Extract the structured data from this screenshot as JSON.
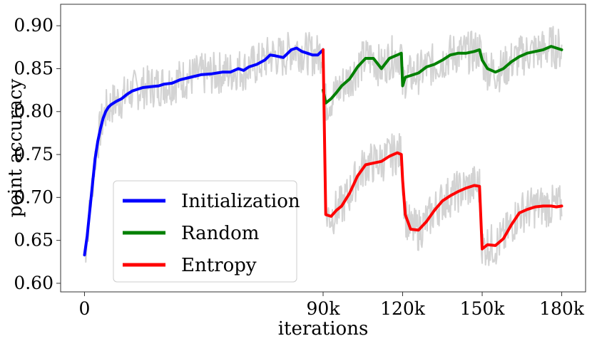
{
  "chart_data": {
    "type": "line",
    "xlabel": "iterations",
    "ylabel": "point accuracy",
    "xlim": [
      -9000,
      189000
    ],
    "ylim": [
      0.59,
      0.925
    ],
    "x_ticks": [
      {
        "value": 0,
        "label": "0"
      },
      {
        "value": 90000,
        "label": "90k"
      },
      {
        "value": 120000,
        "label": "120k"
      },
      {
        "value": 150000,
        "label": "150k"
      },
      {
        "value": 180000,
        "label": "180k"
      }
    ],
    "y_ticks": [
      {
        "value": 0.6,
        "label": "0.60"
      },
      {
        "value": 0.65,
        "label": "0.65"
      },
      {
        "value": 0.7,
        "label": "0.70"
      },
      {
        "value": 0.75,
        "label": "0.75"
      },
      {
        "value": 0.8,
        "label": "0.80"
      },
      {
        "value": 0.85,
        "label": "0.85"
      },
      {
        "value": 0.9,
        "label": "0.90"
      }
    ],
    "grid": false,
    "legend_position": "lower-left",
    "raw_noise_color": "#d3d3d3",
    "series": [
      {
        "name": "Initialization",
        "color": "#0000ff",
        "x": [
          0,
          1000,
          2000,
          3000,
          4000,
          5000,
          6000,
          7000,
          8000,
          9000,
          10000,
          12000,
          14000,
          16000,
          18000,
          20000,
          22000,
          25000,
          28000,
          30000,
          33000,
          36000,
          40000,
          44000,
          48000,
          52000,
          55000,
          58000,
          60000,
          62000,
          65000,
          68000,
          70000,
          72000,
          75000,
          78000,
          80000,
          82000,
          84000,
          86000,
          88000,
          90000
        ],
        "y": [
          0.633,
          0.655,
          0.685,
          0.715,
          0.745,
          0.765,
          0.78,
          0.792,
          0.8,
          0.805,
          0.808,
          0.812,
          0.815,
          0.82,
          0.824,
          0.826,
          0.828,
          0.829,
          0.83,
          0.832,
          0.833,
          0.837,
          0.84,
          0.843,
          0.844,
          0.846,
          0.846,
          0.85,
          0.848,
          0.852,
          0.855,
          0.86,
          0.866,
          0.865,
          0.863,
          0.872,
          0.874,
          0.87,
          0.868,
          0.866,
          0.866,
          0.872
        ]
      },
      {
        "name": "Random",
        "color": "#008000",
        "x": [
          90000,
          91000,
          93000,
          95000,
          97000,
          100000,
          103000,
          106000,
          109000,
          112000,
          115000,
          118000,
          119500,
          120000,
          121000,
          123000,
          126000,
          129000,
          132000,
          135000,
          138000,
          141000,
          144000,
          147000,
          149000,
          150000,
          152000,
          155000,
          158000,
          161000,
          164000,
          167000,
          170000,
          173000,
          176000,
          178000,
          180000
        ],
        "y": [
          0.825,
          0.81,
          0.815,
          0.822,
          0.83,
          0.838,
          0.852,
          0.862,
          0.862,
          0.85,
          0.862,
          0.866,
          0.868,
          0.83,
          0.84,
          0.842,
          0.845,
          0.852,
          0.855,
          0.86,
          0.866,
          0.868,
          0.868,
          0.87,
          0.872,
          0.86,
          0.85,
          0.846,
          0.85,
          0.858,
          0.864,
          0.868,
          0.87,
          0.872,
          0.876,
          0.874,
          0.872
        ]
      },
      {
        "name": "Entropy",
        "color": "#ff0000",
        "x": [
          90000,
          91000,
          93000,
          95000,
          97000,
          100000,
          103000,
          106000,
          109000,
          112000,
          115000,
          118000,
          119500,
          120000,
          121000,
          123000,
          126000,
          129000,
          132000,
          135000,
          138000,
          141000,
          144000,
          147000,
          149000,
          150000,
          152000,
          155000,
          158000,
          161000,
          164000,
          167000,
          170000,
          173000,
          176000,
          178000,
          180000
        ],
        "y": [
          0.872,
          0.68,
          0.678,
          0.685,
          0.69,
          0.705,
          0.725,
          0.738,
          0.74,
          0.742,
          0.748,
          0.752,
          0.75,
          0.72,
          0.68,
          0.663,
          0.662,
          0.672,
          0.685,
          0.696,
          0.702,
          0.707,
          0.711,
          0.714,
          0.713,
          0.64,
          0.645,
          0.644,
          0.652,
          0.668,
          0.682,
          0.686,
          0.689,
          0.69,
          0.69,
          0.689,
          0.69
        ]
      }
    ]
  }
}
